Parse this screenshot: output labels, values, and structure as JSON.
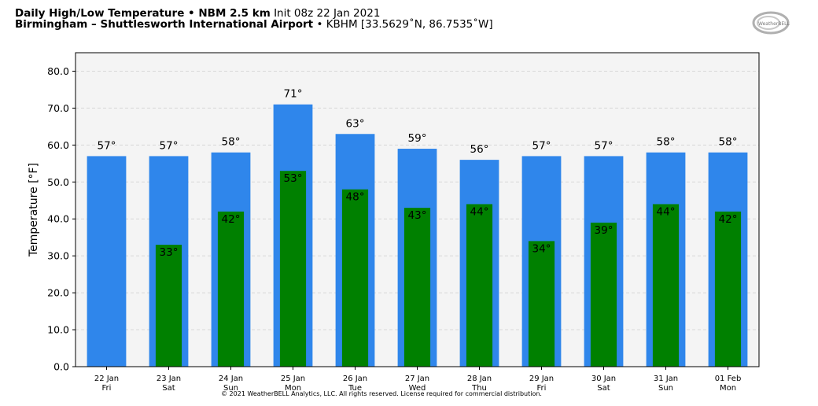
{
  "header": {
    "title_bold": "Daily High/Low Temperature • NBM 2.5 km",
    "init_text": "Init 08z 22 Jan 2021",
    "location_bold": "Birmingham – Shuttlesworth International Airport",
    "station_text": "• KBHM [33.5629˚N, 86.7535˚W]"
  },
  "logo": {
    "text": "WeatherBELL"
  },
  "footer": {
    "copyright": "© 2021 WeatherBELL Analytics, LLC. All rights reserved. License required for commercial distribution."
  },
  "colors": {
    "high": "#2f86eb",
    "low": "#008000",
    "plot_bg": "#f4f4f4",
    "grid": "#d8d8d8"
  },
  "chart_data": {
    "type": "bar",
    "title": "Daily High/Low Temperature • NBM 2.5 km",
    "ylabel": "Temperature [°F]",
    "xlabel": "",
    "ylim": [
      0,
      85
    ],
    "yticks": [
      "0.0",
      "10.0",
      "20.0",
      "30.0",
      "40.0",
      "50.0",
      "60.0",
      "70.0",
      "80.0"
    ],
    "grid": true,
    "categories": [
      {
        "date": "22 Jan",
        "day": "Fri"
      },
      {
        "date": "23 Jan",
        "day": "Sat"
      },
      {
        "date": "24 Jan",
        "day": "Sun"
      },
      {
        "date": "25 Jan",
        "day": "Mon"
      },
      {
        "date": "26 Jan",
        "day": "Tue"
      },
      {
        "date": "27 Jan",
        "day": "Wed"
      },
      {
        "date": "28 Jan",
        "day": "Thu"
      },
      {
        "date": "29 Jan",
        "day": "Fri"
      },
      {
        "date": "30 Jan",
        "day": "Sat"
      },
      {
        "date": "31 Jan",
        "day": "Sun"
      },
      {
        "date": "01 Feb",
        "day": "Mon"
      }
    ],
    "series": [
      {
        "values": [
          57,
          57,
          58,
          71,
          63,
          59,
          56,
          57,
          57,
          58,
          58
        ],
        "labels": [
          "57°",
          "57°",
          "58°",
          "71°",
          "63°",
          "59°",
          "56°",
          "57°",
          "57°",
          "58°",
          "58°"
        ]
      },
      {
        "values": [
          null,
          33,
          42,
          53,
          48,
          43,
          44,
          34,
          39,
          44,
          42
        ],
        "labels": [
          null,
          "33°",
          "42°",
          "53°",
          "48°",
          "43°",
          "44°",
          "34°",
          "39°",
          "44°",
          "42°"
        ]
      }
    ]
  }
}
